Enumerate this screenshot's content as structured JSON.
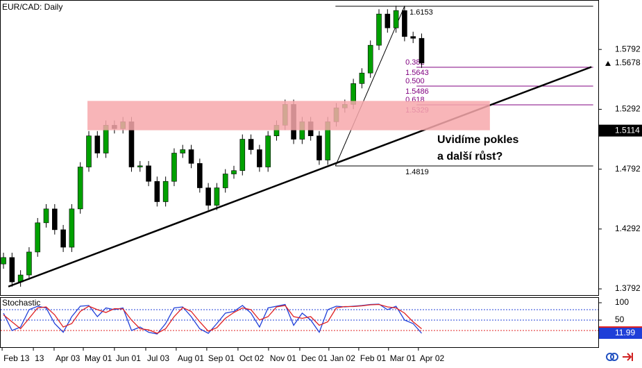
{
  "chart_data": {
    "type": "candlestick",
    "title": "EUR/CAD: Daily",
    "open": [
      1.4,
      1.4054,
      1.385,
      1.3908,
      1.41,
      1.4344,
      1.446,
      1.4286,
      1.414,
      1.446,
      1.481,
      1.507,
      1.4926,
      1.5159,
      1.513,
      1.5188,
      1.481,
      1.482,
      1.469,
      1.452,
      1.469,
      1.4926,
      1.4955,
      1.484,
      1.4636,
      1.449,
      1.4636,
      1.4752,
      1.478,
      1.5042,
      1.4955,
      1.481,
      1.507,
      1.5159,
      1.5333,
      1.5042,
      1.5188,
      1.507,
      1.4868,
      1.5188,
      1.5304,
      1.5333,
      1.5507,
      1.5595,
      1.5827,
      1.6088,
      1.5972,
      1.6117,
      1.59,
      1.5885
    ],
    "high": [
      1.4094,
      1.4094,
      1.3948,
      1.414,
      1.4384,
      1.45,
      1.45,
      1.4326,
      1.45,
      1.485,
      1.511,
      1.511,
      1.5199,
      1.5199,
      1.5228,
      1.5228,
      1.486,
      1.486,
      1.473,
      1.473,
      1.4966,
      1.4995,
      1.4995,
      1.488,
      1.4676,
      1.4676,
      1.4792,
      1.482,
      1.5082,
      1.5082,
      1.4995,
      1.511,
      1.5199,
      1.5373,
      1.5373,
      1.5228,
      1.5228,
      1.511,
      1.5228,
      1.5344,
      1.5373,
      1.5547,
      1.5635,
      1.5867,
      1.6128,
      1.6128,
      1.6157,
      1.6157,
      1.594,
      1.5925
    ],
    "low": [
      1.396,
      1.381,
      1.381,
      1.3868,
      1.406,
      1.4304,
      1.4246,
      1.41,
      1.41,
      1.442,
      1.477,
      1.4886,
      1.4886,
      1.509,
      1.509,
      1.477,
      1.477,
      1.465,
      1.448,
      1.448,
      1.465,
      1.4886,
      1.48,
      1.4596,
      1.445,
      1.445,
      1.4596,
      1.4712,
      1.474,
      1.4915,
      1.477,
      1.477,
      1.503,
      1.5119,
      1.5002,
      1.5002,
      1.503,
      1.4828,
      1.4828,
      1.5148,
      1.5264,
      1.5293,
      1.5467,
      1.5555,
      1.5787,
      1.5932,
      1.5932,
      1.586,
      1.5845,
      1.5638
    ],
    "close": [
      1.4054,
      1.385,
      1.3908,
      1.41,
      1.4344,
      1.446,
      1.4286,
      1.414,
      1.446,
      1.481,
      1.507,
      1.4926,
      1.5159,
      1.513,
      1.5188,
      1.481,
      1.482,
      1.469,
      1.452,
      1.469,
      1.4926,
      1.4955,
      1.484,
      1.4636,
      1.449,
      1.4636,
      1.4752,
      1.478,
      1.5042,
      1.4955,
      1.481,
      1.507,
      1.5159,
      1.5333,
      1.5042,
      1.5188,
      1.507,
      1.4868,
      1.5188,
      1.5304,
      1.5333,
      1.5507,
      1.5595,
      1.5827,
      1.6088,
      1.5972,
      1.6117,
      1.59,
      1.5885,
      1.5678
    ],
    "up_color": "#00a000",
    "down_color": "#000000",
    "xlim": [
      -0.41,
      69.7
    ],
    "xticks": [
      {
        "value": -0.16,
        "label": "Feb 13"
      },
      {
        "value": 3.5,
        "label": "13"
      },
      {
        "value": 5.93,
        "label": "Apr 03"
      },
      {
        "value": 9.35,
        "label": "May 01"
      },
      {
        "value": 13.0,
        "label": "Jun 01"
      },
      {
        "value": 16.67,
        "label": "Jul 03"
      },
      {
        "value": 20.24,
        "label": "Aug 01"
      },
      {
        "value": 23.82,
        "label": "Sep 01"
      },
      {
        "value": 27.48,
        "label": "Oct 02"
      },
      {
        "value": 31.06,
        "label": "Nov 01"
      },
      {
        "value": 34.72,
        "label": "Dec 01"
      },
      {
        "value": 38.13,
        "label": "Jan 02"
      },
      {
        "value": 41.63,
        "label": "Feb 01"
      },
      {
        "value": 45.12,
        "label": "Mar 01"
      },
      {
        "value": 48.62,
        "label": "Apr 02"
      }
    ],
    "ylim": [
      1.374,
      1.6205
    ],
    "yticks": [
      1.3792,
      1.4292,
      1.4792,
      1.5292,
      1.5792
    ],
    "price_tags": [
      1.5678,
      1.5114
    ],
    "price_tag_colors": [
      "#ffffff",
      "#000000"
    ],
    "zone": {
      "x": [
        9.84,
        57.0
      ],
      "y": [
        1.5117,
        1.5362
      ],
      "color": "#f7a8ab"
    },
    "trendline": {
      "x": [
        0.57,
        68.9
      ],
      "y": [
        1.3811,
        1.5646
      ]
    },
    "fibonacci": {
      "x": [
        38.9,
        69.1
      ],
      "levels_start": 48.4,
      "swing_x": [
        38.9,
        47.0
      ],
      "high": 1.6153,
      "low": 1.4819,
      "levels": [
        {
          "ratio": "0.382",
          "price": 1.5643
        },
        {
          "ratio": "0.500",
          "price": 1.5486
        },
        {
          "ratio": "0.618",
          "price": 1.5329
        }
      ],
      "color": "#800080"
    },
    "annotation": [
      "Uvidíme pokles",
      "a další růst?"
    ],
    "stochastic": {
      "title": "Stochastic",
      "ylim": [
        -28,
        116
      ],
      "yticks": [
        50,
        100
      ],
      "levels": [
        80,
        50,
        20
      ],
      "level_colors": [
        "#1f3fd8",
        "#1f3fd8",
        "#e02020"
      ],
      "series": [
        {
          "color": "#1f3fd8",
          "values": [
            70,
            20,
            30,
            80,
            90,
            85,
            40,
            15,
            60,
            90,
            92,
            60,
            85,
            80,
            85,
            20,
            30,
            15,
            10,
            40,
            85,
            88,
            60,
            25,
            12,
            40,
            70,
            75,
            92,
            70,
            30,
            85,
            90,
            95,
            35,
            70,
            50,
            15,
            80,
            90,
            88,
            90,
            92,
            95,
            96,
            80,
            90,
            50,
            40,
            11.99
          ]
        },
        {
          "color": "#e02020",
          "values": [
            65,
            45,
            25,
            55,
            85,
            88,
            65,
            30,
            40,
            75,
            90,
            80,
            72,
            83,
            82,
            50,
            25,
            22,
            12,
            25,
            60,
            86,
            75,
            45,
            18,
            28,
            55,
            72,
            85,
            80,
            50,
            60,
            88,
            92,
            60,
            55,
            60,
            35,
            45,
            85,
            89,
            89,
            91,
            94,
            95,
            88,
            85,
            70,
            45,
            25
          ]
        }
      ],
      "last_value": 11.99
    }
  }
}
